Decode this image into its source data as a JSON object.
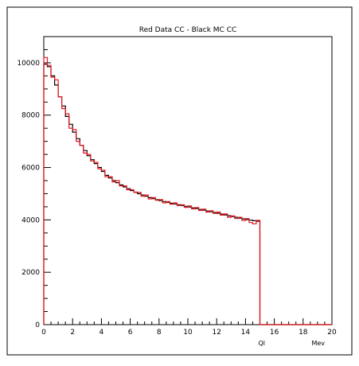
{
  "chart_data": {
    "type": "line",
    "title": "Red Data CC - Black MC CC",
    "xlabel": "Ql",
    "xunit": "Mev",
    "ylabel": "",
    "xlim": [
      0,
      20
    ],
    "ylim": [
      0,
      11000
    ],
    "x_ticks": [
      0,
      2,
      4,
      6,
      8,
      10,
      12,
      14,
      16,
      18,
      20
    ],
    "y_ticks": [
      0,
      2000,
      4000,
      6000,
      8000,
      10000
    ],
    "grid": false,
    "legend": "none",
    "bin_width": 0.25,
    "series": [
      {
        "color": "#000000",
        "values": [
          9950,
          9850,
          9500,
          9150,
          8700,
          8350,
          7950,
          7650,
          7350,
          7100,
          6850,
          6650,
          6450,
          6300,
          6150,
          6000,
          5850,
          5700,
          5600,
          5500,
          5420,
          5340,
          5260,
          5190,
          5120,
          5060,
          5000,
          4950,
          4900,
          4850,
          4810,
          4770,
          4730,
          4700,
          4670,
          4640,
          4610,
          4580,
          4550,
          4520,
          4490,
          4460,
          4430,
          4400,
          4370,
          4340,
          4310,
          4280,
          4250,
          4220,
          4190,
          4160,
          4130,
          4100,
          4070,
          4040,
          4010,
          3990,
          3970,
          3950,
          0,
          0,
          0,
          0,
          0,
          0,
          0,
          0,
          0,
          0,
          0,
          0,
          0,
          0,
          0,
          0,
          0,
          0,
          0,
          0
        ]
      },
      {
        "color": "#e8141c",
        "values": [
          10200,
          9900,
          9450,
          9350,
          8700,
          8250,
          8050,
          7500,
          7450,
          7000,
          6850,
          6550,
          6500,
          6250,
          6200,
          5950,
          5900,
          5650,
          5650,
          5450,
          5500,
          5300,
          5300,
          5150,
          5150,
          5050,
          5050,
          4900,
          4950,
          4800,
          4850,
          4750,
          4780,
          4650,
          4700,
          4600,
          4650,
          4550,
          4580,
          4480,
          4530,
          4420,
          4470,
          4360,
          4410,
          4300,
          4350,
          4250,
          4300,
          4180,
          4230,
          4100,
          4150,
          4050,
          4100,
          3980,
          4050,
          3900,
          3850,
          3980,
          0,
          0,
          0,
          0,
          0,
          0,
          0,
          0,
          0,
          0,
          0,
          0,
          0,
          0,
          0,
          0,
          0,
          0,
          0,
          0
        ]
      }
    ]
  }
}
